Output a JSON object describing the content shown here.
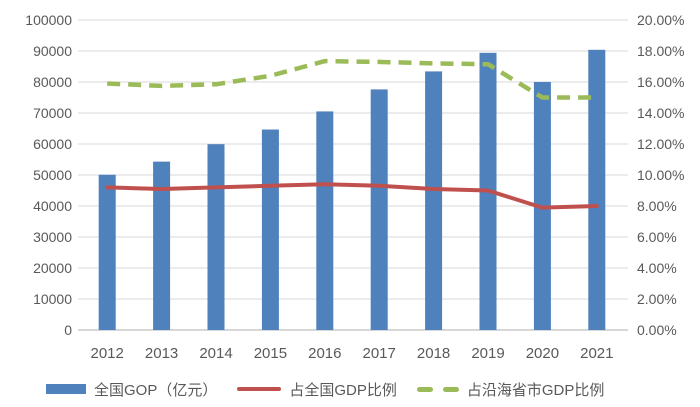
{
  "chart_data": {
    "type": "combo",
    "title": "",
    "categories": [
      "2012",
      "2013",
      "2014",
      "2015",
      "2016",
      "2017",
      "2018",
      "2019",
      "2020",
      "2021"
    ],
    "series": [
      {
        "name": "全国GOP（亿元）",
        "type": "bar",
        "axis": "left",
        "color": "#4F81BD",
        "values": [
          50087,
          54313,
          59936,
          64669,
          70507,
          77611,
          83415,
          89415,
          80010,
          90385
        ]
      },
      {
        "name": "占全国GDP比例",
        "type": "line",
        "style": "solid",
        "axis": "right",
        "color": "#C0504D",
        "values": [
          9.2,
          9.1,
          9.2,
          9.3,
          9.4,
          9.3,
          9.1,
          9.0,
          7.9,
          8.0
        ]
      },
      {
        "name": "占沿海省市GDP比例",
        "type": "line",
        "style": "dashed",
        "axis": "right",
        "color": "#9BBB59",
        "values": [
          15.9,
          15.75,
          15.85,
          16.4,
          17.35,
          17.3,
          17.2,
          17.15,
          15.0,
          15.0
        ]
      }
    ],
    "left_axis": {
      "min": 0,
      "max": 100000,
      "step": 10000,
      "tick_labels": [
        "0",
        "10000",
        "20000",
        "30000",
        "40000",
        "50000",
        "60000",
        "70000",
        "80000",
        "90000",
        "100000"
      ]
    },
    "right_axis": {
      "min": 0,
      "max": 20,
      "step": 2,
      "tick_labels": [
        "0.00%",
        "2.00%",
        "4.00%",
        "6.00%",
        "8.00%",
        "10.00%",
        "12.00%",
        "14.00%",
        "16.00%",
        "18.00%",
        "20.00%"
      ]
    },
    "grid": true,
    "legend_position": "bottom"
  },
  "colors": {
    "grid": "#D9D9D9",
    "axis": "#BFBFBF",
    "text": "#595959",
    "background": "#FFFFFF"
  }
}
